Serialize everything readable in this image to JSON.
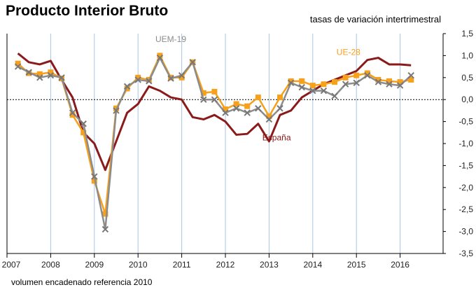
{
  "title": "Producto Interior Bruto",
  "subtitle": "tasas de variación intertrimestral",
  "footnote": "volumen encadenado referencia 2010",
  "chart_data": {
    "type": "line",
    "x_start": "2007 Q1",
    "frequency": "quarterly",
    "x_tick_labels": [
      "2007",
      "2008",
      "2009",
      "2010",
      "2011",
      "2012",
      "2013",
      "2014",
      "2015",
      "2016"
    ],
    "y_tick_labels": [
      "1,5",
      "1,0",
      "0,5",
      "0,0",
      "-0,5",
      "-1,0",
      "-1,5",
      "-2,0",
      "-2,5",
      "-3,0",
      "-3,5"
    ],
    "ylim": [
      -3.5,
      1.5
    ],
    "y_axis_side": "right",
    "grid": "vertical at year boundaries",
    "zero_line": "dashed",
    "series": [
      {
        "name": "España",
        "color": "#8b1a1a",
        "marker": "none",
        "values": [
          1.05,
          0.85,
          0.8,
          0.88,
          0.45,
          0.05,
          -0.75,
          -1.0,
          -1.6,
          -0.95,
          -0.3,
          -0.1,
          0.3,
          0.2,
          0.05,
          0.0,
          -0.4,
          -0.45,
          -0.35,
          -0.5,
          -0.8,
          -0.78,
          -0.55,
          -0.95,
          -0.35,
          -0.25,
          0.05,
          0.2,
          0.35,
          0.45,
          0.55,
          0.65,
          0.9,
          0.95,
          0.8,
          0.8,
          0.78
        ]
      },
      {
        "name": "UE-28",
        "color": "#f7a01c",
        "marker": "square",
        "values": [
          0.82,
          0.6,
          0.58,
          0.62,
          0.48,
          -0.35,
          -0.75,
          -1.85,
          -2.6,
          -0.2,
          0.25,
          0.5,
          0.45,
          1.0,
          0.5,
          0.5,
          0.85,
          0.15,
          0.18,
          -0.22,
          -0.1,
          -0.15,
          0.05,
          -0.38,
          0.05,
          0.42,
          0.42,
          0.32,
          0.35,
          0.4,
          0.5,
          0.55,
          0.6,
          0.45,
          0.42,
          0.4,
          0.45
        ]
      },
      {
        "name": "UEM-19",
        "color": "#8c8c8c",
        "marker": "cross",
        "values": [
          0.75,
          0.62,
          0.5,
          0.55,
          0.5,
          -0.3,
          -0.55,
          -1.75,
          -2.95,
          -0.25,
          0.3,
          0.45,
          0.42,
          0.95,
          0.48,
          0.55,
          0.85,
          0.0,
          0.0,
          -0.3,
          -0.2,
          -0.3,
          -0.2,
          -0.45,
          -0.2,
          0.38,
          0.28,
          0.2,
          0.2,
          0.08,
          0.35,
          0.38,
          0.55,
          0.4,
          0.35,
          0.32,
          0.55
        ]
      }
    ]
  }
}
